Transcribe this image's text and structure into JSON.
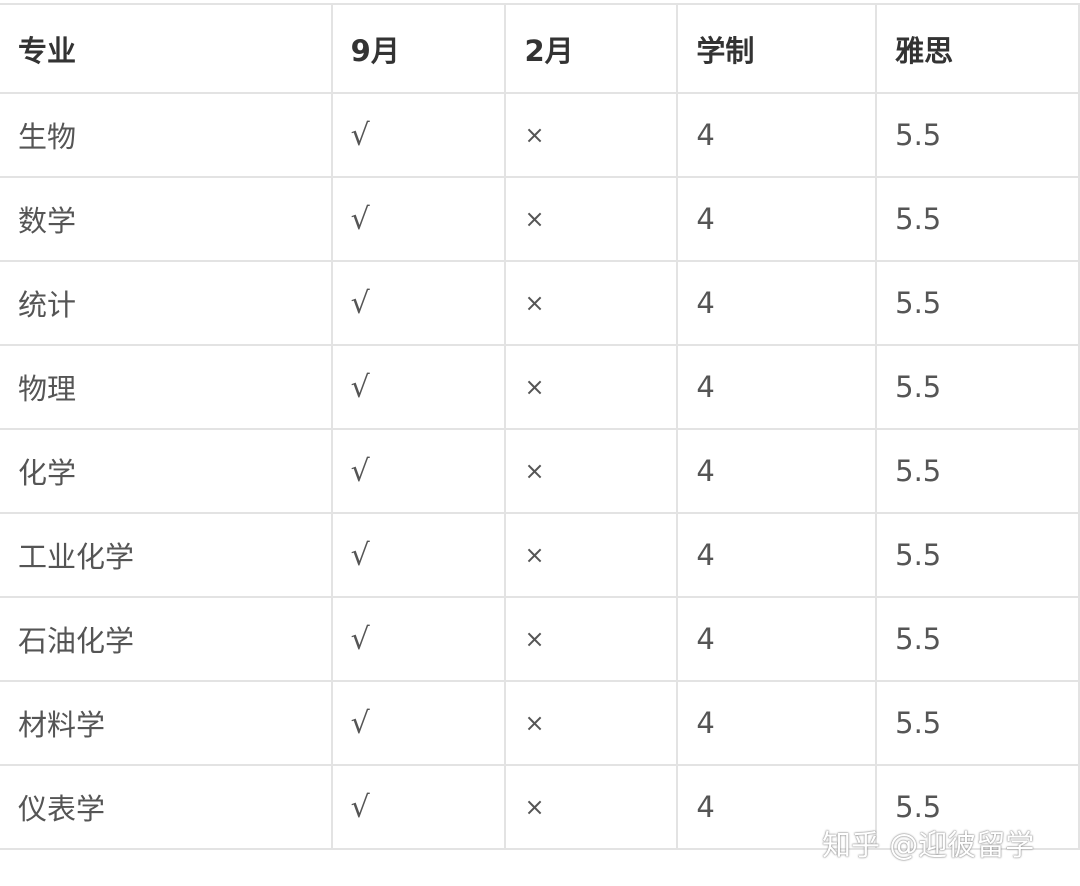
{
  "table": {
    "headers": [
      "专业",
      "9月",
      "2月",
      "学制",
      "雅思"
    ],
    "rows": [
      [
        "生物",
        "√",
        "×",
        "4",
        "5.5"
      ],
      [
        "数学",
        "√",
        "×",
        "4",
        "5.5"
      ],
      [
        "统计",
        "√",
        "×",
        "4",
        "5.5"
      ],
      [
        "物理",
        "√",
        "×",
        "4",
        "5.5"
      ],
      [
        "化学",
        "√",
        "×",
        "4",
        "5.5"
      ],
      [
        "工业化学",
        "√",
        "×",
        "4",
        "5.5"
      ],
      [
        "石油化学",
        "√",
        "×",
        "4",
        "5.5"
      ],
      [
        "材料学",
        "√",
        "×",
        "4",
        "5.5"
      ],
      [
        "仪表学",
        "√",
        "×",
        "4",
        "5.5"
      ]
    ]
  },
  "watermark": "知乎 @迎彼留学"
}
